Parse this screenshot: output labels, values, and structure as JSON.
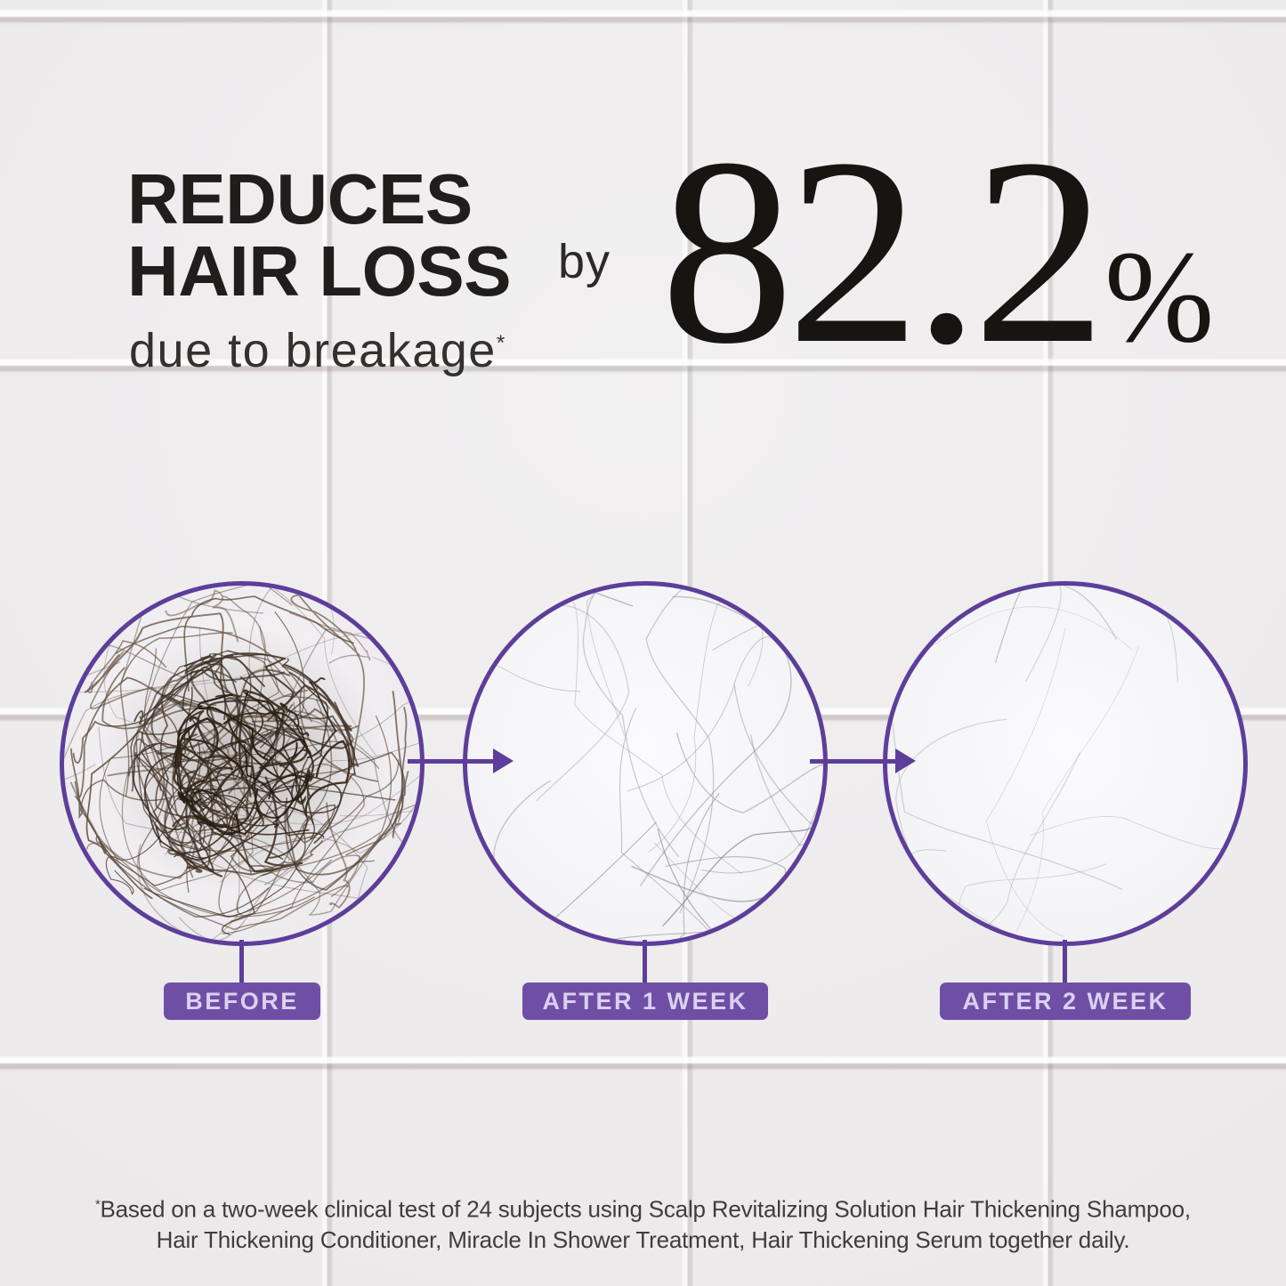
{
  "claim": {
    "headline_line1": "REDUCES",
    "headline_line2": "HAIR LOSS",
    "subheadline": "due to breakage",
    "footnote_marker": "*",
    "connector_word": "by",
    "stat_value": "82.2",
    "stat_unit": "%"
  },
  "comparison": {
    "panels": [
      {
        "label": "BEFORE",
        "hair_level": "dense"
      },
      {
        "label": "AFTER 1 WEEK",
        "hair_level": "sparse"
      },
      {
        "label": "AFTER 2 WEEK",
        "hair_level": "minimal"
      }
    ]
  },
  "disclaimer": {
    "marker": "*",
    "line1": "Based on a two-week clinical test of 24 subjects using Scalp Revitalizing Solution Hair Thickening Shampoo,",
    "line2": "Hair Thickening Conditioner, Miracle In Shower Treatment, Hair Thickening Serum together daily."
  },
  "colors": {
    "accent_purple": "#5d3e9a",
    "badge_purple": "#6e4fa5",
    "badge_text": "#dcd0f1",
    "headline_text": "#1f1e1c",
    "stat_text": "#161511",
    "disclaimer_text": "#3e3d3c",
    "hair_dark_brown": "#3c2e23",
    "hair_light_gray": "#95949a"
  }
}
